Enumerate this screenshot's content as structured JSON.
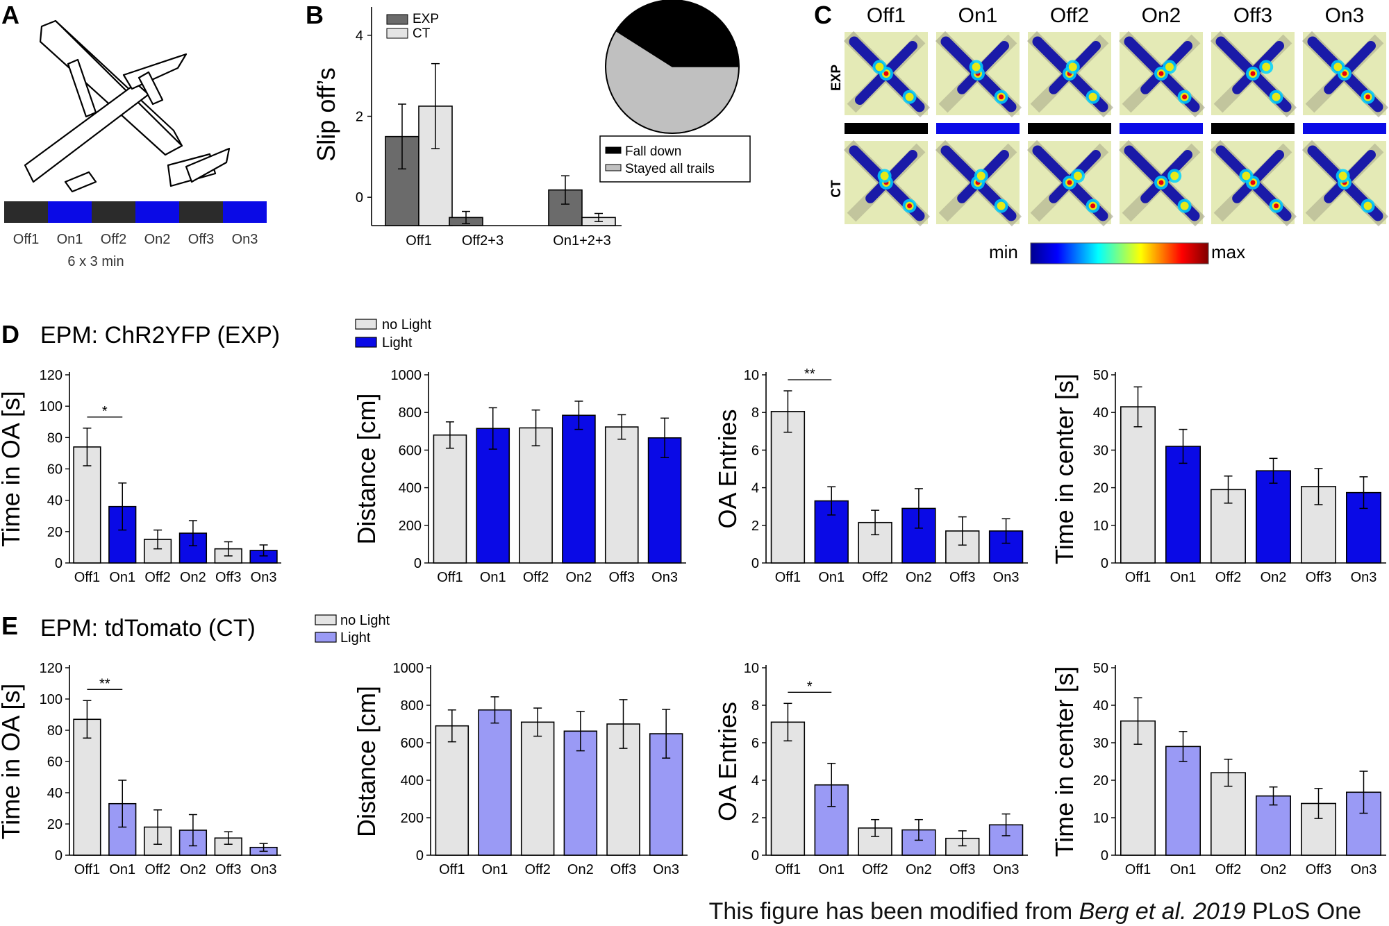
{
  "colors": {
    "exp_light": "#0a0ae6",
    "ct_light": "#9a9af5",
    "no_light": "#e4e4e4",
    "exp_bar": "#6b6b6b",
    "ct_bar": "#e4e4e4",
    "block_off": "#2b2b2b",
    "block_on": "#0a0ae6",
    "heat_bg": "#e4eab6",
    "pie_fall": "#000000",
    "pie_stay": "#c0c0c0"
  },
  "panelA": {
    "letter": "A",
    "labels": [
      "Off1",
      "On1",
      "Off2",
      "On2",
      "Off3",
      "On3"
    ],
    "schedule_note": "6 x 3 min"
  },
  "panelB": {
    "letter": "B",
    "legend_exp": "EXP",
    "legend_ct": "CT",
    "pie_legend_fall": "Fall down",
    "pie_legend_stay": "Stayed all trails"
  },
  "panelC": {
    "letter": "C",
    "conditions": [
      "Off1",
      "On1",
      "Off2",
      "On2",
      "Off3",
      "On3"
    ],
    "row_exp": "EXP",
    "row_ct": "CT",
    "scale_min": "min",
    "scale_max": "max"
  },
  "panelD": {
    "letter": "D",
    "title": "EPM: ChR2YFP (EXP)",
    "legend_no": "no Light",
    "legend_light": "Light"
  },
  "panelE": {
    "letter": "E",
    "title": "EPM: tdTomato (CT)",
    "legend_no": "no Light",
    "legend_light": "Light"
  },
  "credit": {
    "prefix": "This figure has been modified from ",
    "ref": "Berg et al. 2019",
    "suffix": " PLoS One"
  },
  "chart_data": [
    {
      "id": "B_bar",
      "type": "bar",
      "ylabel": "Slip off’s",
      "categories": [
        "Off1",
        "Off2+3",
        "On1+2+3"
      ],
      "yticks": [
        0,
        2,
        4
      ],
      "ylim": [
        -0.7,
        4.7
      ],
      "series": [
        {
          "name": "EXP",
          "values": [
            1.5,
            -0.5,
            0.18
          ],
          "err": [
            0.8,
            0.15,
            0.35
          ]
        },
        {
          "name": "CT",
          "values": [
            2.25,
            null,
            -0.5
          ],
          "err": [
            1.05,
            0,
            0.1
          ]
        }
      ]
    },
    {
      "id": "B_pie",
      "type": "pie",
      "slices": [
        {
          "name": "Fall down",
          "value": 41
        },
        {
          "name": "Stayed all trails",
          "value": 59
        }
      ]
    },
    {
      "id": "D1",
      "type": "bar",
      "ylabel": "Time in OA [s]",
      "categories": [
        "Off1",
        "On1",
        "Off2",
        "On2",
        "Off3",
        "On3"
      ],
      "values": [
        74,
        36,
        15,
        19,
        9,
        8
      ],
      "err": [
        12,
        15,
        6,
        8,
        4.5,
        3.5
      ],
      "ylim": [
        0,
        120
      ],
      "yticks": [
        0,
        20,
        40,
        60,
        80,
        100,
        120
      ],
      "sig": {
        "from": 0,
        "to": 1,
        "label": "*"
      }
    },
    {
      "id": "D2",
      "type": "bar",
      "ylabel": "Distance [cm]",
      "categories": [
        "Off1",
        "On1",
        "Off2",
        "On2",
        "Off3",
        "On3"
      ],
      "values": [
        680,
        715,
        718,
        785,
        723,
        665
      ],
      "err": [
        70,
        110,
        95,
        75,
        65,
        105
      ],
      "ylim": [
        0,
        1000
      ],
      "yticks": [
        0,
        200,
        400,
        600,
        800,
        1000
      ]
    },
    {
      "id": "D3",
      "type": "bar",
      "ylabel": "OA Entries",
      "categories": [
        "Off1",
        "On1",
        "Off2",
        "On2",
        "Off3",
        "On3"
      ],
      "values": [
        8.05,
        3.3,
        2.15,
        2.9,
        1.7,
        1.7
      ],
      "err": [
        1.1,
        0.75,
        0.65,
        1.05,
        0.75,
        0.65
      ],
      "ylim": [
        0,
        10
      ],
      "yticks": [
        0,
        2,
        4,
        6,
        8,
        10
      ],
      "sig": {
        "from": 0,
        "to": 1,
        "label": "**"
      }
    },
    {
      "id": "D4",
      "type": "bar",
      "ylabel": "Time in center [s]",
      "categories": [
        "Off1",
        "On1",
        "Off2",
        "On2",
        "Off3",
        "On3"
      ],
      "values": [
        41.5,
        31,
        19.5,
        24.5,
        20.3,
        18.7
      ],
      "err": [
        5.3,
        4.5,
        3.6,
        3.3,
        4.8,
        4.2
      ],
      "ylim": [
        0,
        50
      ],
      "yticks": [
        0,
        10,
        20,
        30,
        40,
        50
      ]
    },
    {
      "id": "E1",
      "type": "bar",
      "ylabel": "Time in OA [s]",
      "categories": [
        "Off1",
        "On1",
        "Off2",
        "On2",
        "Off3",
        "On3"
      ],
      "values": [
        87,
        33,
        18,
        16,
        11,
        5
      ],
      "err": [
        12,
        15,
        11,
        10,
        4,
        2.5
      ],
      "ylim": [
        0,
        120
      ],
      "yticks": [
        0,
        20,
        40,
        60,
        80,
        100,
        120
      ],
      "sig": {
        "from": 0,
        "to": 1,
        "label": "**"
      }
    },
    {
      "id": "E2",
      "type": "bar",
      "ylabel": "Distance [cm]",
      "categories": [
        "Off1",
        "On1",
        "Off2",
        "On2",
        "Off3",
        "On3"
      ],
      "values": [
        690,
        775,
        710,
        662,
        700,
        648
      ],
      "err": [
        85,
        70,
        75,
        105,
        130,
        130
      ],
      "ylim": [
        0,
        1000
      ],
      "yticks": [
        0,
        200,
        400,
        600,
        800,
        1000
      ]
    },
    {
      "id": "E3",
      "type": "bar",
      "ylabel": "OA Entries",
      "categories": [
        "Off1",
        "On1",
        "Off2",
        "On2",
        "Off3",
        "On3"
      ],
      "values": [
        7.1,
        3.75,
        1.45,
        1.35,
        0.9,
        1.62
      ],
      "err": [
        1.0,
        1.15,
        0.45,
        0.55,
        0.4,
        0.58
      ],
      "ylim": [
        0,
        10
      ],
      "yticks": [
        0,
        2,
        4,
        6,
        8,
        10
      ],
      "sig": {
        "from": 0,
        "to": 1,
        "label": "*"
      }
    },
    {
      "id": "E4",
      "type": "bar",
      "ylabel": "Time in center [s]",
      "categories": [
        "Off1",
        "On1",
        "Off2",
        "On2",
        "Off3",
        "On3"
      ],
      "values": [
        35.8,
        29,
        22,
        15.8,
        13.8,
        16.8
      ],
      "err": [
        6.2,
        4,
        3.6,
        2.4,
        4,
        5.6
      ],
      "ylim": [
        0,
        50
      ],
      "yticks": [
        0,
        10,
        20,
        30,
        40,
        50
      ]
    }
  ]
}
